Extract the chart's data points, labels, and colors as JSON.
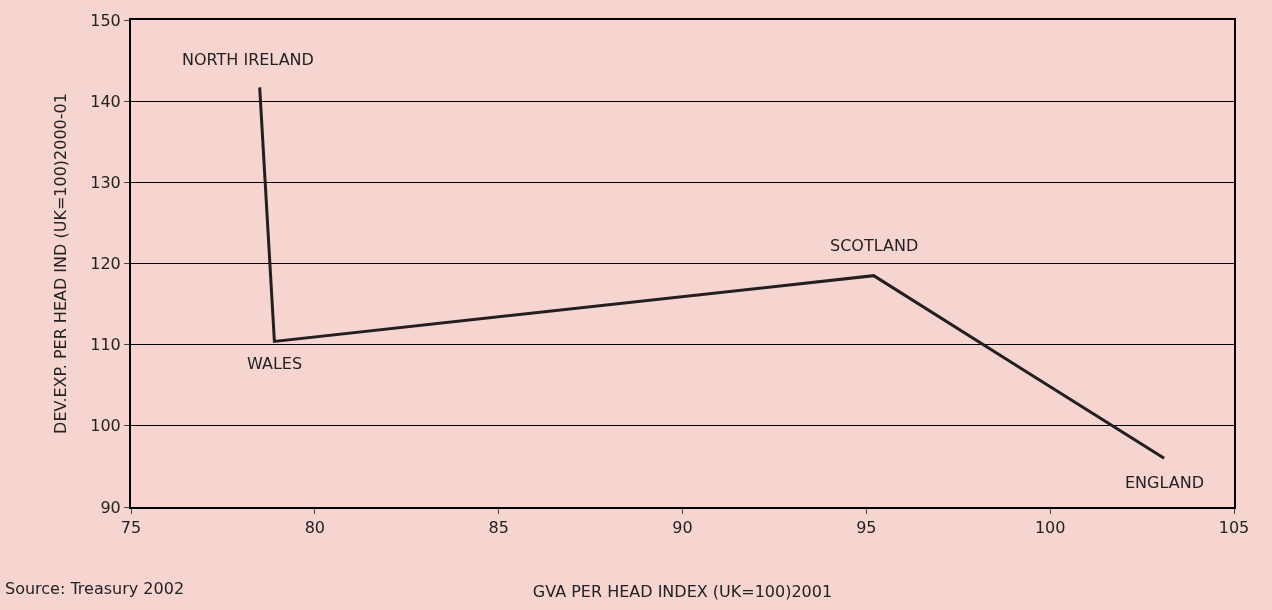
{
  "chart_data": {
    "type": "line",
    "xlabel": "GVA PER HEAD INDEX (UK=100)2001",
    "ylabel": "DEV.EXP. PER HEAD IND (UK=100)2000-01",
    "x": [
      78.5,
      78.9,
      95.2,
      103.1
    ],
    "series": [
      {
        "color": "#231f20",
        "values": [
          141.7,
          110.4,
          118.5,
          96.0
        ]
      }
    ],
    "xlim": [
      75,
      105
    ],
    "xticks": [
      75,
      80,
      85,
      90,
      95,
      100,
      105
    ],
    "ylim": [
      90,
      150
    ],
    "yticks": [
      90,
      100,
      110,
      120,
      130,
      140,
      150
    ],
    "grid": "y",
    "marker": "none",
    "line_style": "solid",
    "annotations": [
      {
        "text": "NORTH IRELAND",
        "x": 78.5,
        "y": 141.7
      },
      {
        "text": "WALES",
        "x": 78.9,
        "y": 110.4
      },
      {
        "text": "SCOTLAND",
        "x": 95.2,
        "y": 118.5
      },
      {
        "text": "ENGLAND",
        "x": 103.1,
        "y": 96.0
      },
      "Source: Treasury 2002"
    ]
  }
}
